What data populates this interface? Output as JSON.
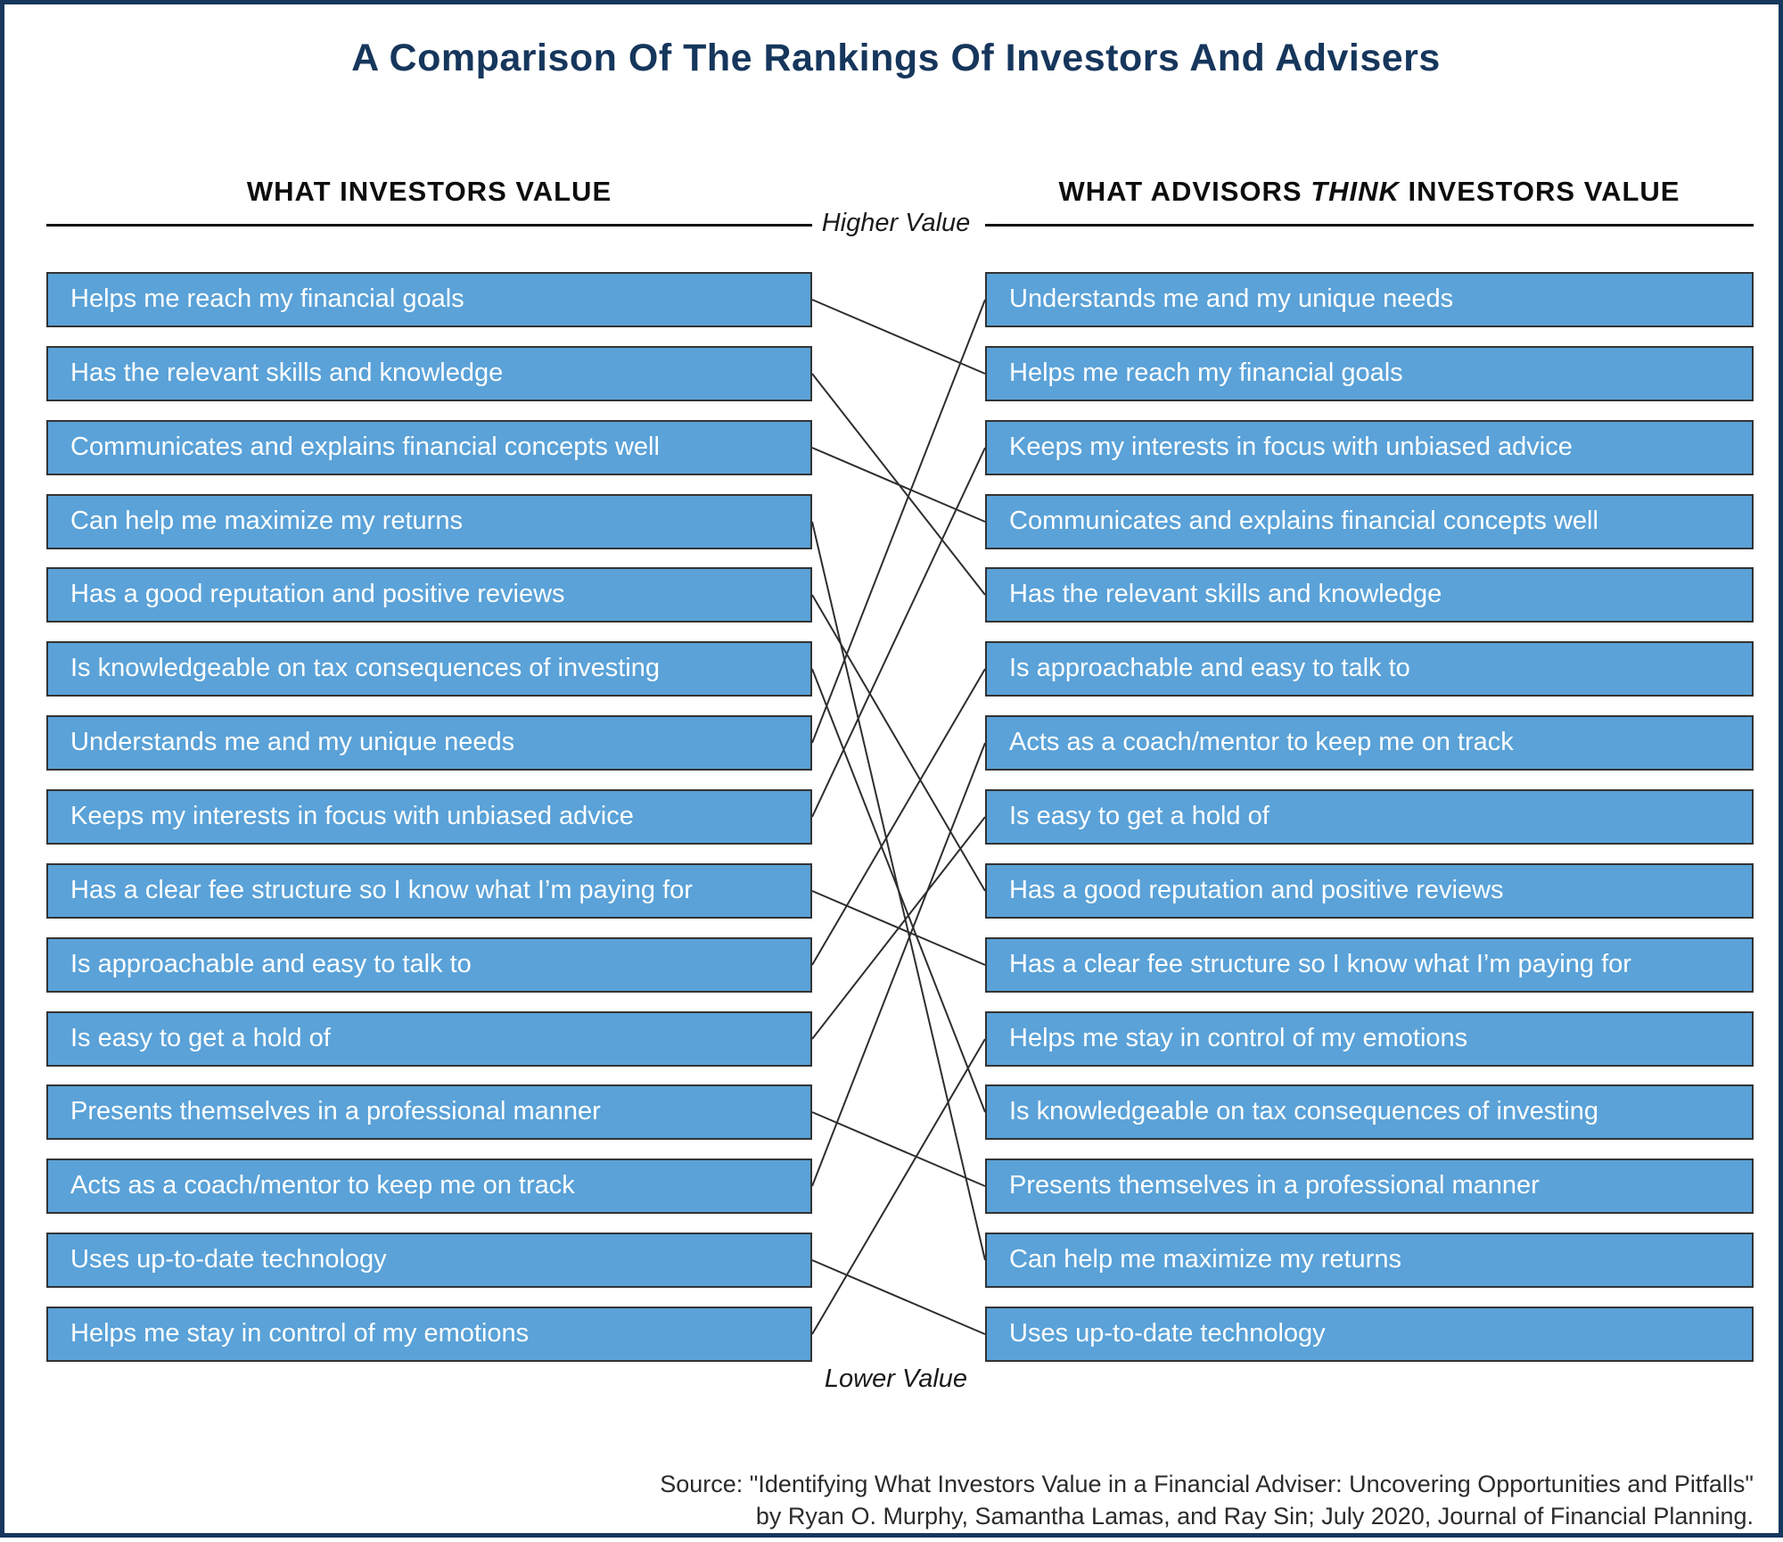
{
  "title": "A Comparison Of The Rankings Of Investors And Advisers",
  "columns": {
    "left": {
      "header": "WHAT INVESTORS VALUE",
      "items": [
        "Helps me reach my financial goals",
        "Has the relevant skills and knowledge",
        "Communicates and explains financial concepts well",
        "Can help me maximize my returns",
        "Has a good reputation and positive reviews",
        "Is knowledgeable on tax consequences of investing",
        "Understands me and my unique needs",
        "Keeps my interests in focus with unbiased advice",
        "Has a clear fee structure so I know what I’m paying for",
        "Is approachable and easy to talk to",
        "Is easy to get a hold of",
        "Presents themselves in a professional manner",
        "Acts as a coach/mentor to keep me on track",
        "Uses up-to-date technology",
        "Helps me stay in control of my emotions"
      ]
    },
    "right": {
      "header_prefix": "WHAT ADVISORS ",
      "header_think": "THINK",
      "header_suffix": " INVESTORS VALUE",
      "items": [
        "Understands me and my unique needs",
        "Helps me reach my financial goals",
        "Keeps my interests in focus with unbiased advice",
        "Communicates and explains financial concepts well",
        "Has the relevant skills and knowledge",
        "Is approachable and easy to talk to",
        "Acts as a coach/mentor to keep me on track",
        "Is easy to get a hold of",
        "Has a good reputation and positive reviews",
        "Has a clear fee structure so I know what I’m paying for",
        "Helps me stay in control of my emotions",
        "Is knowledgeable on tax consequences of investing",
        "Presents themselves in a professional manner",
        "Can help me maximize my returns",
        "Uses up-to-date technology"
      ]
    }
  },
  "middle": {
    "higher_label": "Higher Value",
    "lower_label": "Lower Value"
  },
  "source": {
    "line1": "Source: \"Identifying What Investors Value in a Financial Adviser: Uncovering Opportunities and Pitfalls\"",
    "line2": "by Ryan O. Murphy, Samantha Lamas, and Ray Sin; July 2020, Journal of Financial Planning."
  },
  "colors": {
    "bar_fill": "#5aa2d8",
    "bar_border": "#333333",
    "connector_line": "#2e2e2e",
    "title_navy": "#16365c",
    "frame_navy": "#17375e",
    "header_black": "#0d0d0d"
  },
  "chart_data": {
    "type": "table",
    "title": "A Comparison Of The Rankings Of Investors And Advisers",
    "columns": [
      "WHAT INVESTORS VALUE",
      "WHAT ADVISORS THINK INVESTORS VALUE"
    ],
    "annotations": [
      "Higher Value",
      "Lower Value"
    ],
    "legend_position": "none",
    "grid": false,
    "investor_ranking": [
      "Helps me reach my financial goals",
      "Has the relevant skills and knowledge",
      "Communicates and explains financial concepts well",
      "Can help me maximize my returns",
      "Has a good reputation and positive reviews",
      "Is knowledgeable on tax consequences of investing",
      "Understands me and my unique needs",
      "Keeps my interests in focus with unbiased advice",
      "Has a clear fee structure so I know what I’m paying for",
      "Is approachable and easy to talk to",
      "Is easy to get a hold of",
      "Presents themselves in a professional manner",
      "Acts as a coach/mentor to keep me on track",
      "Uses up-to-date technology",
      "Helps me stay in control of my emotions"
    ],
    "advisor_ranking": [
      "Understands me and my unique needs",
      "Helps me reach my financial goals",
      "Keeps my interests in focus with unbiased advice",
      "Communicates and explains financial concepts well",
      "Has the relevant skills and knowledge",
      "Is approachable and easy to talk to",
      "Acts as a coach/mentor to keep me on track",
      "Is easy to get a hold of",
      "Has a good reputation and positive reviews",
      "Has a clear fee structure so I know what I’m paying for",
      "Helps me stay in control of my emotions",
      "Is knowledgeable on tax consequences of investing",
      "Presents themselves in a professional manner",
      "Can help me maximize my returns",
      "Uses up-to-date technology"
    ],
    "links": [
      {
        "label": "Helps me reach my financial goals",
        "investor_rank": 1,
        "advisor_rank": 2
      },
      {
        "label": "Has the relevant skills and knowledge",
        "investor_rank": 2,
        "advisor_rank": 5
      },
      {
        "label": "Communicates and explains financial concepts well",
        "investor_rank": 3,
        "advisor_rank": 4
      },
      {
        "label": "Can help me maximize my returns",
        "investor_rank": 4,
        "advisor_rank": 14
      },
      {
        "label": "Has a good reputation and positive reviews",
        "investor_rank": 5,
        "advisor_rank": 9
      },
      {
        "label": "Is knowledgeable on tax consequences of investing",
        "investor_rank": 6,
        "advisor_rank": 12
      },
      {
        "label": "Understands me and my unique needs",
        "investor_rank": 7,
        "advisor_rank": 1
      },
      {
        "label": "Keeps my interests in focus with unbiased advice",
        "investor_rank": 8,
        "advisor_rank": 3
      },
      {
        "label": "Has a clear fee structure so I know what I’m paying for",
        "investor_rank": 9,
        "advisor_rank": 10
      },
      {
        "label": "Is approachable and easy to talk to",
        "investor_rank": 10,
        "advisor_rank": 6
      },
      {
        "label": "Is easy to get a hold of",
        "investor_rank": 11,
        "advisor_rank": 8
      },
      {
        "label": "Presents themselves in a professional manner",
        "investor_rank": 12,
        "advisor_rank": 13
      },
      {
        "label": "Acts as a coach/mentor to keep me on track",
        "investor_rank": 13,
        "advisor_rank": 7
      },
      {
        "label": "Uses up-to-date technology",
        "investor_rank": 14,
        "advisor_rank": 15
      },
      {
        "label": "Helps me stay in control of my emotions",
        "investor_rank": 15,
        "advisor_rank": 11
      }
    ]
  }
}
